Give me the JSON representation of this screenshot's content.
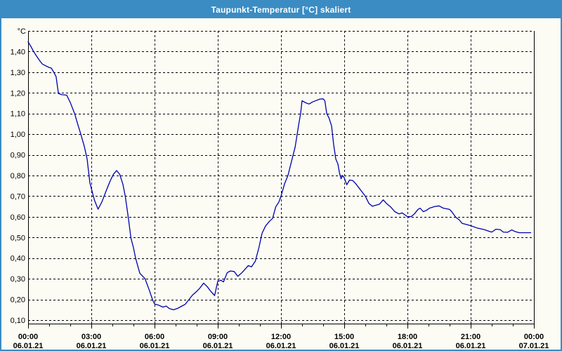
{
  "window": {
    "title": "Taupunkt-Temperatur [°C] skaliert"
  },
  "colors": {
    "titlebar_bg": "#3a8cc3",
    "window_border": "#3a8cc3",
    "background": "#fcfcf5",
    "grid": "#000000",
    "label_text": "#000000",
    "title_text": "#ffffff",
    "series_line": "#0000aa"
  },
  "chart_data": {
    "type": "line",
    "title": "Taupunkt-Temperatur [°C] skaliert",
    "y_unit_label": "°C",
    "ylim": [
      0.1,
      1.5
    ],
    "y_tick_step": 0.1,
    "y_tick_labels": [
      "0,10",
      "0,20",
      "0,30",
      "0,40",
      "0,50",
      "0,60",
      "0,70",
      "0,80",
      "0,90",
      "1,00",
      "1,10",
      "1,20",
      "1,30",
      "1,40"
    ],
    "xlim_hours": [
      0,
      24
    ],
    "x_minor_tick_every_hours": 1,
    "x_major_tick_every_hours": 3,
    "x_major_ticks": [
      {
        "time": "00:00",
        "date": "06.01.21"
      },
      {
        "time": "03:00",
        "date": "06.01.21"
      },
      {
        "time": "06:00",
        "date": "06.01.21"
      },
      {
        "time": "09:00",
        "date": "06.01.21"
      },
      {
        "time": "12:00",
        "date": "06.01.21"
      },
      {
        "time": "15:00",
        "date": "06.01.21"
      },
      {
        "time": "18:00",
        "date": "06.01.21"
      },
      {
        "time": "21:00",
        "date": "06.01.21"
      },
      {
        "time": "00:00",
        "date": "07.01.21"
      }
    ],
    "grid": "dashed",
    "legend": "none",
    "series": [
      {
        "name": "Taupunkt-Temperatur",
        "color": "#0000aa",
        "points": [
          [
            0.0,
            1.447
          ],
          [
            0.13,
            1.425
          ],
          [
            0.25,
            1.402
          ],
          [
            0.4,
            1.378
          ],
          [
            0.55,
            1.356
          ],
          [
            0.67,
            1.34
          ],
          [
            0.83,
            1.331
          ],
          [
            1.0,
            1.323
          ],
          [
            1.1,
            1.32
          ],
          [
            1.22,
            1.3
          ],
          [
            1.33,
            1.278
          ],
          [
            1.38,
            1.24
          ],
          [
            1.44,
            1.197
          ],
          [
            1.6,
            1.191
          ],
          [
            1.83,
            1.189
          ],
          [
            2.0,
            1.154
          ],
          [
            2.22,
            1.096
          ],
          [
            2.35,
            1.05
          ],
          [
            2.5,
            1.0
          ],
          [
            2.67,
            0.94
          ],
          [
            2.8,
            0.88
          ],
          [
            2.93,
            0.766
          ],
          [
            3.0,
            0.737
          ],
          [
            3.15,
            0.68
          ],
          [
            3.32,
            0.637
          ],
          [
            3.5,
            0.672
          ],
          [
            3.7,
            0.725
          ],
          [
            3.9,
            0.775
          ],
          [
            4.05,
            0.806
          ],
          [
            4.2,
            0.824
          ],
          [
            4.35,
            0.805
          ],
          [
            4.5,
            0.757
          ],
          [
            4.61,
            0.7
          ],
          [
            4.75,
            0.6
          ],
          [
            4.88,
            0.497
          ],
          [
            5.0,
            0.45
          ],
          [
            5.1,
            0.4
          ],
          [
            5.3,
            0.327
          ],
          [
            5.55,
            0.3
          ],
          [
            5.75,
            0.245
          ],
          [
            5.9,
            0.2
          ],
          [
            6.0,
            0.178
          ],
          [
            6.2,
            0.172
          ],
          [
            6.4,
            0.163
          ],
          [
            6.55,
            0.168
          ],
          [
            6.7,
            0.156
          ],
          [
            6.9,
            0.15
          ],
          [
            7.1,
            0.157
          ],
          [
            7.3,
            0.168
          ],
          [
            7.45,
            0.176
          ],
          [
            7.6,
            0.195
          ],
          [
            7.8,
            0.221
          ],
          [
            8.0,
            0.239
          ],
          [
            8.15,
            0.255
          ],
          [
            8.33,
            0.279
          ],
          [
            8.5,
            0.262
          ],
          [
            8.67,
            0.239
          ],
          [
            8.85,
            0.219
          ],
          [
            9.0,
            0.288
          ],
          [
            9.15,
            0.293
          ],
          [
            9.27,
            0.285
          ],
          [
            9.45,
            0.33
          ],
          [
            9.6,
            0.338
          ],
          [
            9.78,
            0.335
          ],
          [
            9.95,
            0.312
          ],
          [
            10.15,
            0.33
          ],
          [
            10.45,
            0.364
          ],
          [
            10.6,
            0.358
          ],
          [
            10.78,
            0.385
          ],
          [
            10.95,
            0.45
          ],
          [
            11.1,
            0.52
          ],
          [
            11.27,
            0.556
          ],
          [
            11.45,
            0.578
          ],
          [
            11.6,
            0.592
          ],
          [
            11.75,
            0.648
          ],
          [
            11.9,
            0.672
          ],
          [
            12.0,
            0.7
          ],
          [
            12.17,
            0.76
          ],
          [
            12.33,
            0.8
          ],
          [
            12.5,
            0.869
          ],
          [
            12.67,
            0.937
          ],
          [
            12.83,
            1.04
          ],
          [
            12.93,
            1.1
          ],
          [
            13.0,
            1.162
          ],
          [
            13.17,
            1.152
          ],
          [
            13.33,
            1.146
          ],
          [
            13.5,
            1.156
          ],
          [
            13.67,
            1.163
          ],
          [
            13.85,
            1.17
          ],
          [
            14.0,
            1.171
          ],
          [
            14.08,
            1.162
          ],
          [
            14.17,
            1.1
          ],
          [
            14.28,
            1.078
          ],
          [
            14.4,
            1.04
          ],
          [
            14.5,
            0.948
          ],
          [
            14.6,
            0.88
          ],
          [
            14.7,
            0.856
          ],
          [
            14.78,
            0.81
          ],
          [
            14.85,
            0.784
          ],
          [
            14.92,
            0.8
          ],
          [
            15.0,
            0.789
          ],
          [
            15.12,
            0.755
          ],
          [
            15.25,
            0.778
          ],
          [
            15.4,
            0.776
          ],
          [
            15.55,
            0.76
          ],
          [
            15.7,
            0.74
          ],
          [
            15.85,
            0.72
          ],
          [
            16.0,
            0.7
          ],
          [
            16.17,
            0.665
          ],
          [
            16.33,
            0.651
          ],
          [
            16.5,
            0.656
          ],
          [
            16.67,
            0.661
          ],
          [
            16.85,
            0.682
          ],
          [
            17.0,
            0.665
          ],
          [
            17.2,
            0.648
          ],
          [
            17.4,
            0.625
          ],
          [
            17.6,
            0.614
          ],
          [
            17.75,
            0.619
          ],
          [
            18.0,
            0.601
          ],
          [
            18.17,
            0.601
          ],
          [
            18.33,
            0.614
          ],
          [
            18.5,
            0.636
          ],
          [
            18.6,
            0.642
          ],
          [
            18.75,
            0.625
          ],
          [
            18.9,
            0.631
          ],
          [
            19.05,
            0.642
          ],
          [
            19.3,
            0.65
          ],
          [
            19.5,
            0.653
          ],
          [
            19.7,
            0.642
          ],
          [
            19.85,
            0.639
          ],
          [
            20.0,
            0.636
          ],
          [
            20.1,
            0.625
          ],
          [
            20.3,
            0.597
          ],
          [
            20.45,
            0.586
          ],
          [
            20.6,
            0.568
          ],
          [
            20.8,
            0.563
          ],
          [
            21.0,
            0.557
          ],
          [
            21.3,
            0.546
          ],
          [
            21.65,
            0.538
          ],
          [
            21.85,
            0.531
          ],
          [
            22.0,
            0.526
          ],
          [
            22.2,
            0.54
          ],
          [
            22.4,
            0.538
          ],
          [
            22.55,
            0.526
          ],
          [
            22.75,
            0.525
          ],
          [
            22.95,
            0.537
          ],
          [
            23.1,
            0.529
          ],
          [
            23.3,
            0.523
          ],
          [
            23.6,
            0.523
          ],
          [
            23.85,
            0.523
          ]
        ]
      }
    ]
  }
}
